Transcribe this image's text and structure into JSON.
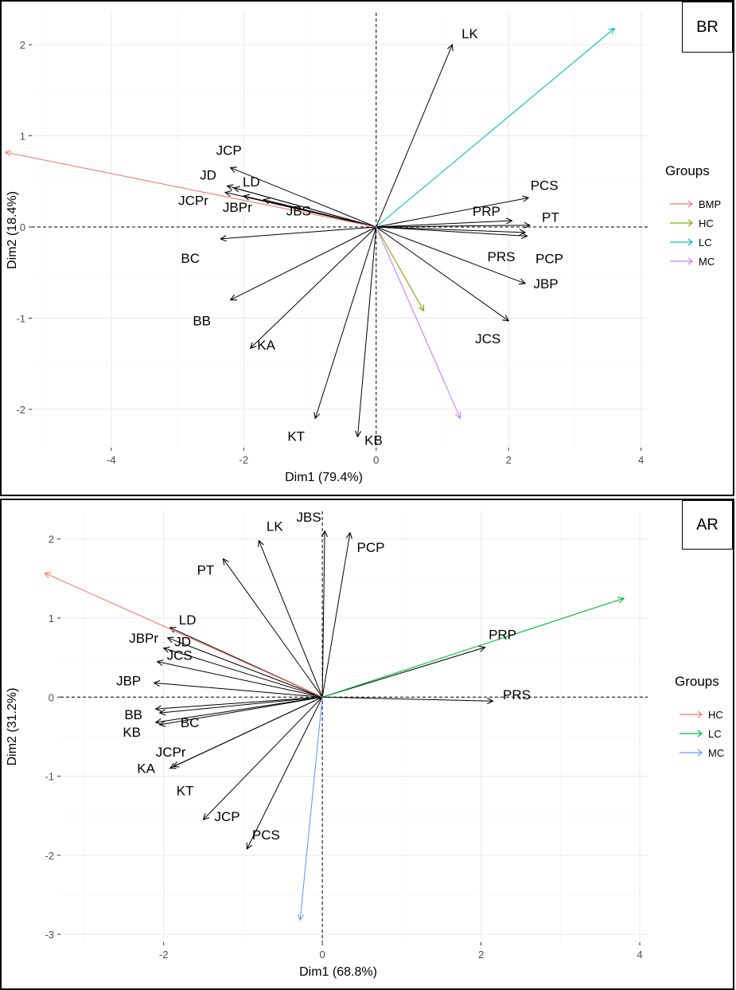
{
  "chart_data": [
    {
      "type": "biplot",
      "panel_tag": "BR",
      "xlabel": "Dim1 (79.4%)",
      "ylabel": "Dim2 (18.4%)",
      "xlim": [
        -5.2,
        4.1
      ],
      "ylim": [
        -2.42,
        2.35
      ],
      "xticks": [
        -4,
        -2,
        0,
        2,
        4
      ],
      "yticks": [
        -2,
        -1,
        0,
        1,
        2
      ],
      "xtick_labels": [
        "-4",
        "-2",
        "0",
        "2",
        "4"
      ],
      "ytick_labels": [
        "-2",
        "-1",
        "0",
        "1",
        "2"
      ],
      "grid": true,
      "legend": {
        "title": "Groups",
        "position": "right",
        "entries": [
          {
            "label": "BMP",
            "color": "#F8766D"
          },
          {
            "label": "HC",
            "color": "#7CAE00"
          },
          {
            "label": "LC",
            "color": "#00BFC4"
          },
          {
            "label": "MC",
            "color": "#C77CFF"
          }
        ]
      },
      "variables": [
        {
          "name": "LK",
          "x": 1.15,
          "y": 2.0
        },
        {
          "name": "JCP",
          "x": -2.2,
          "y": 0.65
        },
        {
          "name": "JD",
          "x": -2.25,
          "y": 0.45
        },
        {
          "name": "LD",
          "x": -2.15,
          "y": 0.43
        },
        {
          "name": "JCPr",
          "x": -2.28,
          "y": 0.38
        },
        {
          "name": "JBPr",
          "x": -2.0,
          "y": 0.34
        },
        {
          "name": "JBS",
          "x": -1.7,
          "y": 0.3
        },
        {
          "name": "BC",
          "x": -2.35,
          "y": -0.13
        },
        {
          "name": "BB",
          "x": -2.2,
          "y": -0.8
        },
        {
          "name": "KA",
          "x": -1.9,
          "y": -1.33
        },
        {
          "name": "KT",
          "x": -0.92,
          "y": -2.1
        },
        {
          "name": "KB",
          "x": -0.28,
          "y": -2.3
        },
        {
          "name": "JCS",
          "x": 2.0,
          "y": -1.03
        },
        {
          "name": "JBP",
          "x": 2.25,
          "y": -0.62
        },
        {
          "name": "PCS",
          "x": 2.3,
          "y": 0.32
        },
        {
          "name": "PRP",
          "x": 2.05,
          "y": 0.07
        },
        {
          "name": "PT",
          "x": 2.32,
          "y": 0.02
        },
        {
          "name": "PRS",
          "x": 2.25,
          "y": -0.06
        },
        {
          "name": "PCP",
          "x": 2.28,
          "y": -0.1
        }
      ],
      "groups": [
        {
          "name": "BMP",
          "x": -5.6,
          "y": 0.82,
          "color": "#F8766D"
        },
        {
          "name": "HC",
          "x": 0.72,
          "y": -0.92,
          "color": "#7CAE00"
        },
        {
          "name": "LC",
          "x": 3.6,
          "y": 2.18,
          "color": "#00BFC4"
        },
        {
          "name": "MC",
          "x": 1.27,
          "y": -2.1,
          "color": "#C77CFF"
        }
      ]
    },
    {
      "type": "biplot",
      "panel_tag": "AR",
      "xlabel": "Dim1 (68.8%)",
      "ylabel": "Dim2 (31.2%)",
      "xlim": [
        -3.3,
        4.1
      ],
      "ylim": [
        -3.1,
        2.35
      ],
      "xticks": [
        -2,
        0,
        2,
        4
      ],
      "yticks": [
        -3,
        -2,
        -1,
        0,
        1,
        2
      ],
      "xtick_labels": [
        "-2",
        "0",
        "2",
        "4"
      ],
      "ytick_labels": [
        "-3",
        "-2",
        "-1",
        "0",
        "1",
        "2"
      ],
      "grid": true,
      "legend": {
        "title": "Groups",
        "position": "right",
        "entries": [
          {
            "label": "HC",
            "color": "#F8766D"
          },
          {
            "label": "LC",
            "color": "#00BA38"
          },
          {
            "label": "MC",
            "color": "#619CFF"
          }
        ]
      },
      "variables": [
        {
          "name": "JBS",
          "x": 0.03,
          "y": 2.1
        },
        {
          "name": "LK",
          "x": -0.8,
          "y": 1.98
        },
        {
          "name": "PCP",
          "x": 0.35,
          "y": 2.08
        },
        {
          "name": "PT",
          "x": -1.25,
          "y": 1.75
        },
        {
          "name": "LD",
          "x": -1.92,
          "y": 0.88
        },
        {
          "name": "JBPr",
          "x": -1.95,
          "y": 0.75
        },
        {
          "name": "JD",
          "x": -2.0,
          "y": 0.62
        },
        {
          "name": "JCS",
          "x": -2.08,
          "y": 0.45
        },
        {
          "name": "JBP",
          "x": -2.12,
          "y": 0.18
        },
        {
          "name": "BB",
          "x": -2.1,
          "y": -0.15
        },
        {
          "name": "BC",
          "x": -2.05,
          "y": -0.2
        },
        {
          "name": "KB",
          "x": -2.1,
          "y": -0.32
        },
        {
          "name": "JCPr",
          "x": -2.05,
          "y": -0.35
        },
        {
          "name": "KA",
          "x": -1.92,
          "y": -0.9
        },
        {
          "name": "KT",
          "x": -1.88,
          "y": -0.88
        },
        {
          "name": "JCP",
          "x": -1.5,
          "y": -1.55
        },
        {
          "name": "PCS",
          "x": -0.95,
          "y": -1.92
        },
        {
          "name": "PRP",
          "x": 2.05,
          "y": 0.63
        },
        {
          "name": "PRS",
          "x": 2.15,
          "y": -0.05
        }
      ],
      "groups": [
        {
          "name": "HC",
          "x": -3.5,
          "y": 1.57,
          "color": "#F8766D"
        },
        {
          "name": "LC",
          "x": 3.8,
          "y": 1.25,
          "color": "#00BA38"
        },
        {
          "name": "MC",
          "x": -0.28,
          "y": -2.82,
          "color": "#619CFF"
        }
      ]
    }
  ]
}
